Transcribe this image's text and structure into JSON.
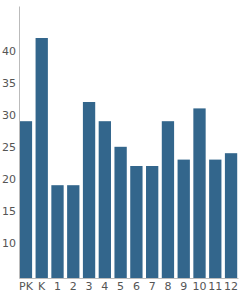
{
  "chart_data": {
    "type": "bar",
    "categories": [
      "PK",
      "K",
      "1",
      "2",
      "3",
      "4",
      "5",
      "6",
      "7",
      "8",
      "9",
      "10",
      "11",
      "12"
    ],
    "values": [
      29,
      42,
      19,
      19,
      32,
      29,
      25,
      22,
      22,
      29,
      23,
      31,
      23,
      24
    ],
    "color": "#33668c",
    "ylim": [
      4.5,
      47
    ],
    "yticks": [
      10,
      15,
      20,
      25,
      30,
      35,
      40
    ],
    "grid": false
  }
}
